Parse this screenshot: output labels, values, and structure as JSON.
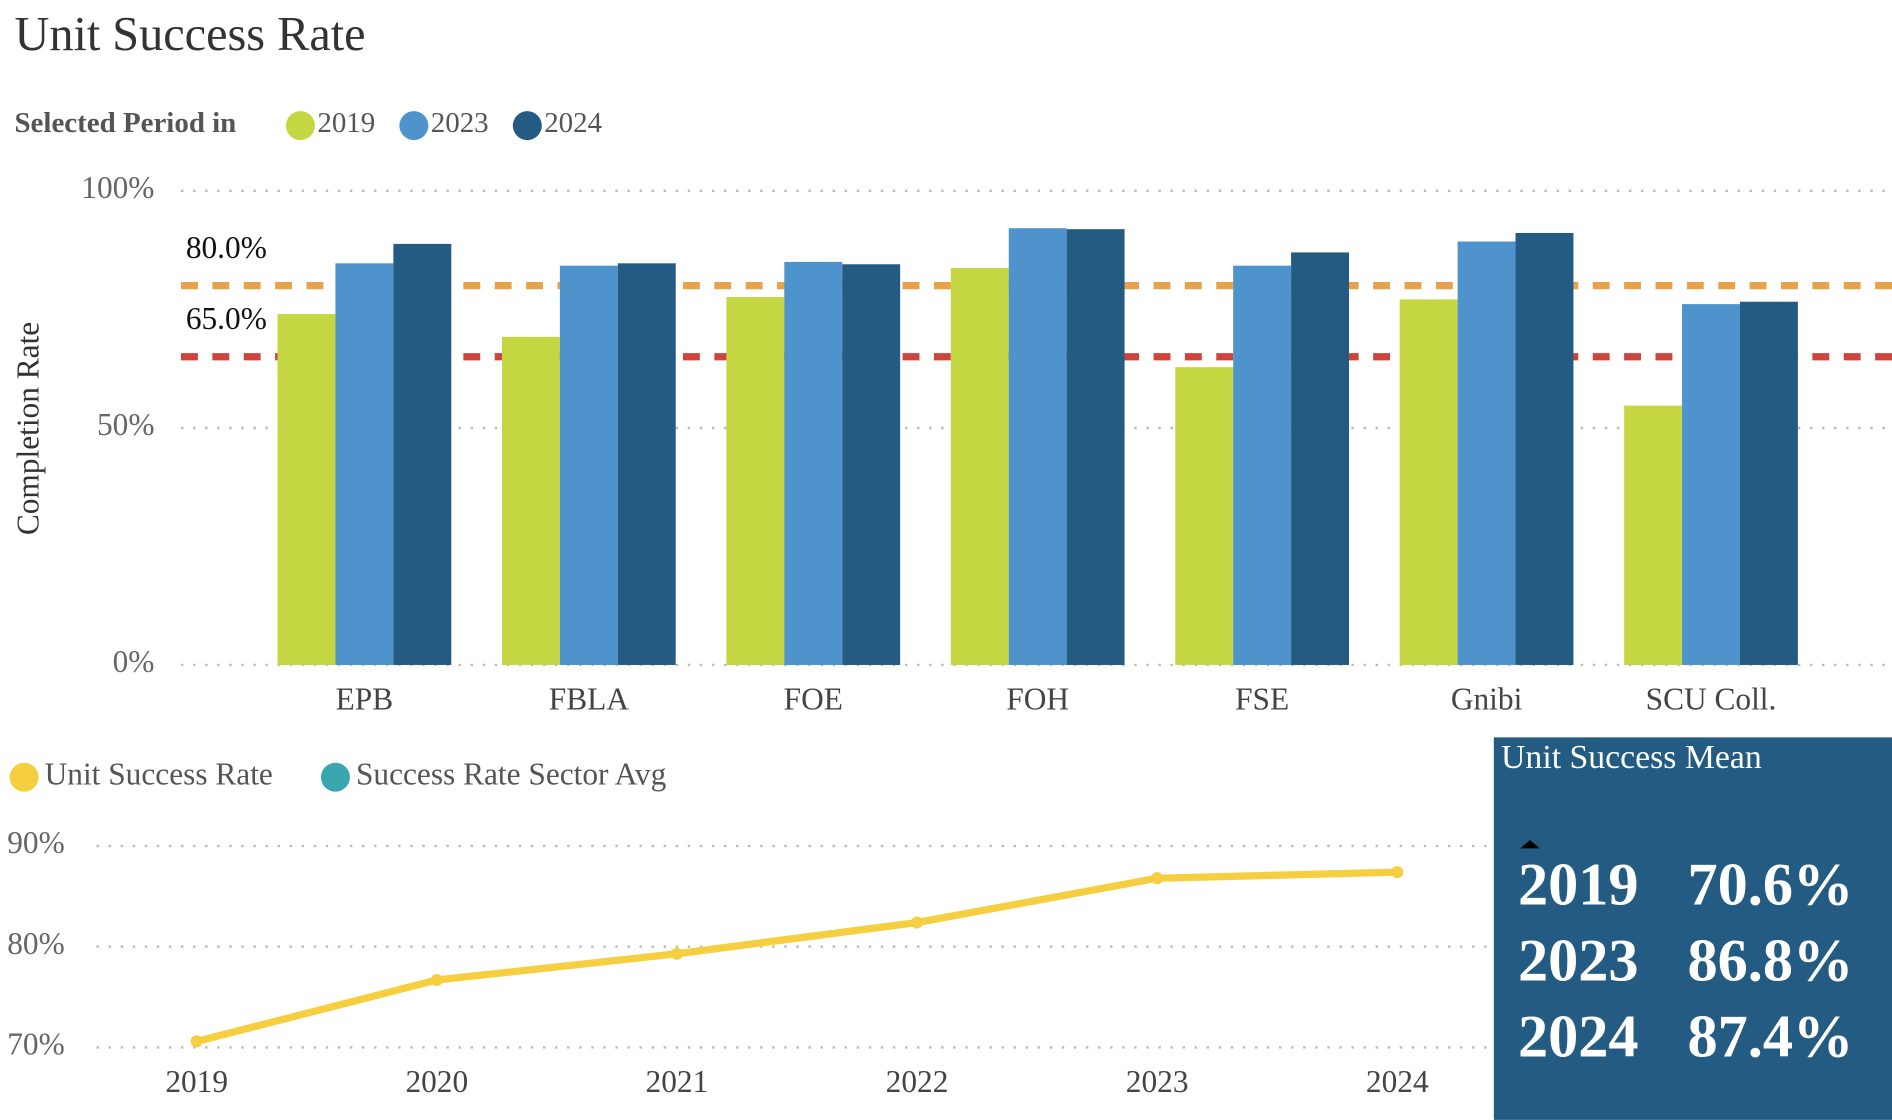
{
  "chart_data": [
    {
      "type": "bar",
      "title": "Unit Success Rate",
      "legend_title": "Selected Period in",
      "y_label": "Completion Rate",
      "categories": [
        "EPB",
        "FBLA",
        "FOE",
        "FOH",
        "FSE",
        "Gnibi",
        "SCU Coll."
      ],
      "series": [
        {
          "name": "2019",
          "color": "#c5d643",
          "values": [
            74.0,
            69.2,
            77.6,
            83.7,
            62.8,
            77.1,
            54.7
          ]
        },
        {
          "name": "2023",
          "color": "#4f93cc",
          "values": [
            84.7,
            84.2,
            85.0,
            92.1,
            84.2,
            89.3,
            76.1
          ]
        },
        {
          "name": "2024",
          "color": "#245b82",
          "values": [
            88.8,
            84.7,
            84.5,
            91.9,
            87.0,
            91.1,
            76.6
          ]
        }
      ],
      "reference_lines": [
        {
          "value": 80,
          "label": "80.0%",
          "color": "#e8a24a"
        },
        {
          "value": 65,
          "label": "65.0%",
          "color": "#d0433b"
        }
      ],
      "ylim": [
        0,
        100
      ],
      "yticks": [
        {
          "value": 0,
          "label": "0%"
        },
        {
          "value": 50,
          "label": "50%"
        },
        {
          "value": 100,
          "label": "100%"
        }
      ],
      "grid": true
    },
    {
      "type": "line",
      "categories": [
        "2019",
        "2020",
        "2021",
        "2022",
        "2023",
        "2024"
      ],
      "series": [
        {
          "name": "Unit Success Rate",
          "color": "#f5cf3f",
          "values": [
            70.6,
            76.7,
            79.3,
            82.4,
            86.8,
            87.4
          ]
        },
        {
          "name": "Success Rate Sector Avg",
          "color": "#3aa6b0",
          "values": [
            null,
            null,
            null,
            null,
            null,
            null
          ]
        }
      ],
      "ylim": [
        70,
        90
      ],
      "yticks": [
        {
          "value": 70,
          "label": "70%"
        },
        {
          "value": 80,
          "label": "80%"
        },
        {
          "value": 90,
          "label": "90%"
        }
      ],
      "grid": true
    },
    {
      "type": "kpi",
      "title": "Unit Success Mean",
      "color": "#245b82",
      "categories": [
        "2019",
        "2023",
        "2024"
      ],
      "values": [
        70.6,
        86.8,
        87.4
      ],
      "value_labels": [
        "70.6%",
        "86.8%",
        "87.4%"
      ]
    }
  ]
}
